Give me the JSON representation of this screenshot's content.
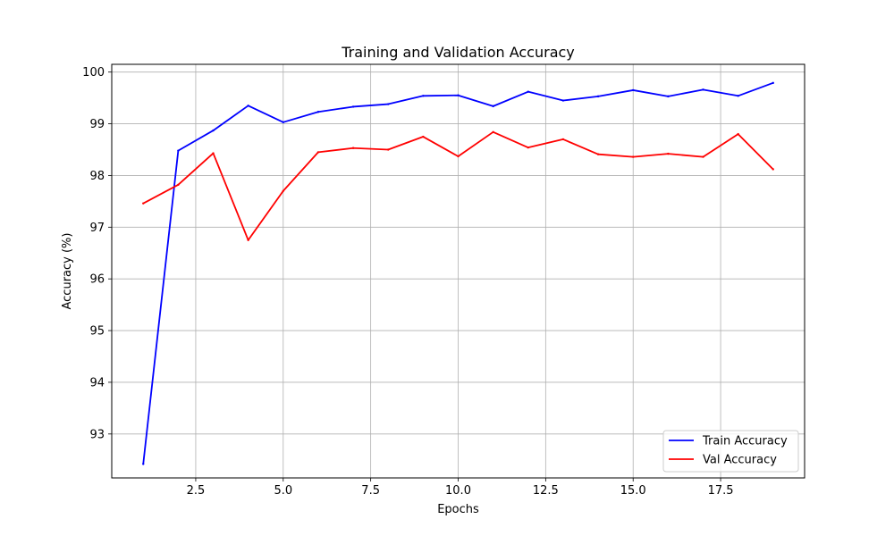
{
  "chart_data": {
    "type": "line",
    "title": "Training and Validation Accuracy",
    "xlabel": "Epochs",
    "ylabel": "Accuracy (%)",
    "xlim": [
      0.1,
      19.9
    ],
    "ylim": [
      92.15,
      100.15
    ],
    "xticks": [
      2.5,
      5.0,
      7.5,
      10.0,
      12.5,
      15.0,
      17.5
    ],
    "xtick_labels": [
      "2.5",
      "5.0",
      "7.5",
      "10.0",
      "12.5",
      "15.0",
      "17.5"
    ],
    "yticks": [
      93,
      94,
      95,
      96,
      97,
      98,
      99,
      100
    ],
    "ytick_labels": [
      "93",
      "94",
      "95",
      "96",
      "97",
      "98",
      "99",
      "100"
    ],
    "grid": true,
    "legend_position": "lower-right",
    "x": [
      1,
      2,
      3,
      4,
      5,
      6,
      7,
      8,
      9,
      10,
      11,
      12,
      13,
      14,
      15,
      16,
      17,
      18,
      19
    ],
    "series": [
      {
        "name": "Train Accuracy",
        "color": "#0000ff",
        "values": [
          92.42,
          98.48,
          98.87,
          99.35,
          99.03,
          99.23,
          99.33,
          99.38,
          99.54,
          99.55,
          99.34,
          99.62,
          99.45,
          99.53,
          99.65,
          99.53,
          99.66,
          99.54,
          99.79
        ]
      },
      {
        "name": "Val Accuracy",
        "color": "#ff0000",
        "values": [
          97.46,
          97.82,
          98.43,
          96.75,
          97.7,
          98.45,
          98.53,
          98.5,
          98.75,
          98.37,
          98.84,
          98.54,
          98.7,
          98.41,
          98.36,
          98.42,
          98.36,
          98.8,
          98.12
        ]
      }
    ]
  }
}
